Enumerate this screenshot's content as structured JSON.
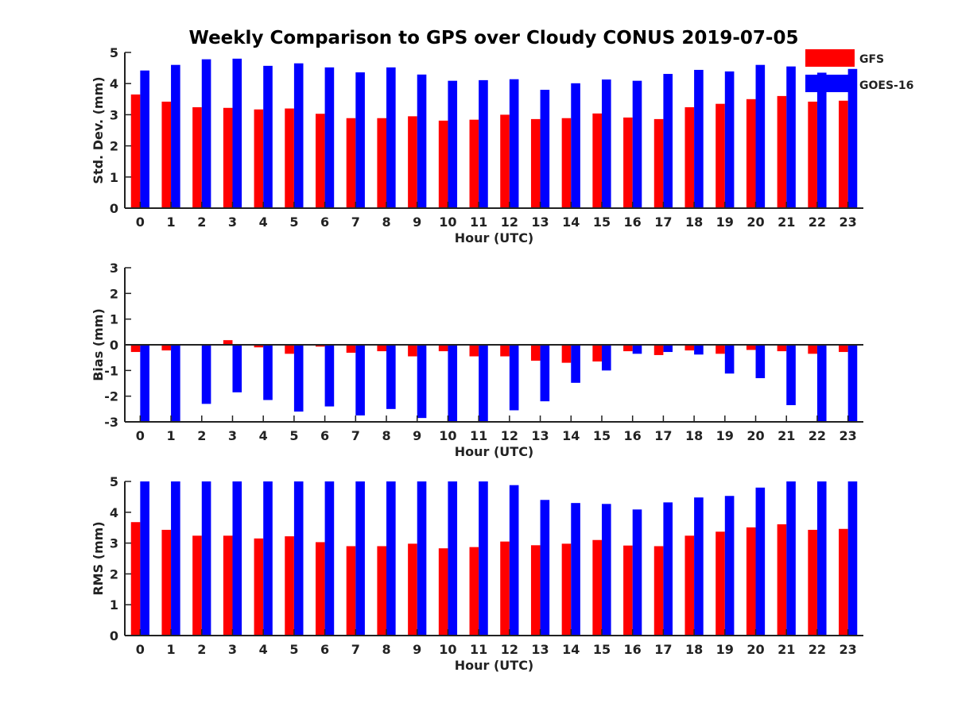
{
  "title": "Weekly Comparison to GPS over Cloudy CONUS 2019-07-05",
  "legend": [
    {
      "name": "GFS",
      "color": "#ff0000"
    },
    {
      "name": "GOES-16",
      "color": "#0000ff"
    }
  ],
  "chart_data": [
    {
      "type": "bar",
      "categories": [
        "0",
        "1",
        "2",
        "3",
        "4",
        "5",
        "6",
        "7",
        "8",
        "9",
        "10",
        "11",
        "12",
        "13",
        "14",
        "15",
        "16",
        "17",
        "18",
        "19",
        "20",
        "21",
        "22",
        "23"
      ],
      "xlabel": "Hour (UTC)",
      "ylabel": "Std. Dev. (mm)",
      "ylim": [
        0,
        5
      ],
      "yticks": [
        "0",
        "1",
        "2",
        "3",
        "4",
        "5"
      ],
      "legend_position": "top-right",
      "series": [
        {
          "name": "GFS",
          "color": "#ff0000",
          "values": [
            3.65,
            3.42,
            3.24,
            3.22,
            3.17,
            3.2,
            3.03,
            2.89,
            2.89,
            2.95,
            2.81,
            2.84,
            3.0,
            2.86,
            2.89,
            3.04,
            2.91,
            2.86,
            3.24,
            3.35,
            3.5,
            3.6,
            3.42,
            3.45
          ]
        },
        {
          "name": "GOES-16",
          "color": "#0000ff",
          "values": [
            4.42,
            4.6,
            4.78,
            4.8,
            4.57,
            4.65,
            4.52,
            4.36,
            4.52,
            4.29,
            4.09,
            4.11,
            4.14,
            3.8,
            4.01,
            4.13,
            4.09,
            4.31,
            4.44,
            4.39,
            4.6,
            4.55,
            4.35,
            4.47
          ]
        }
      ]
    },
    {
      "type": "bar",
      "categories": [
        "0",
        "1",
        "2",
        "3",
        "4",
        "5",
        "6",
        "7",
        "8",
        "9",
        "10",
        "11",
        "12",
        "13",
        "14",
        "15",
        "16",
        "17",
        "18",
        "19",
        "20",
        "21",
        "22",
        "23"
      ],
      "xlabel": "Hour (UTC)",
      "ylabel": "Bias (mm)",
      "ylim": [
        -3,
        3
      ],
      "yticks": [
        "-3",
        "-2",
        "-1",
        "0",
        "1",
        "2",
        "3"
      ],
      "series": [
        {
          "name": "GFS",
          "color": "#ff0000",
          "values": [
            -0.28,
            -0.22,
            -0.03,
            0.18,
            -0.1,
            -0.35,
            -0.07,
            -0.31,
            -0.25,
            -0.45,
            -0.25,
            -0.45,
            -0.45,
            -0.62,
            -0.7,
            -0.65,
            -0.25,
            -0.4,
            -0.22,
            -0.35,
            -0.2,
            -0.25,
            -0.35,
            -0.28
          ]
        },
        {
          "name": "GOES-16",
          "color": "#0000ff",
          "values": [
            -3.3,
            -3.3,
            -2.3,
            -1.85,
            -2.15,
            -2.6,
            -2.4,
            -2.75,
            -2.5,
            -2.85,
            -2.98,
            -3.3,
            -2.55,
            -2.2,
            -1.48,
            -1.0,
            -0.35,
            -0.28,
            -0.38,
            -1.12,
            -1.3,
            -2.35,
            -3.3,
            -3.3
          ]
        }
      ]
    },
    {
      "type": "bar",
      "categories": [
        "0",
        "1",
        "2",
        "3",
        "4",
        "5",
        "6",
        "7",
        "8",
        "9",
        "10",
        "11",
        "12",
        "13",
        "14",
        "15",
        "16",
        "17",
        "18",
        "19",
        "20",
        "21",
        "22",
        "23"
      ],
      "xlabel": "Hour (UTC)",
      "ylabel": "RMS (mm)",
      "ylim": [
        0,
        5
      ],
      "yticks": [
        "0",
        "1",
        "2",
        "3",
        "4",
        "5"
      ],
      "series": [
        {
          "name": "GFS",
          "color": "#ff0000",
          "values": [
            3.68,
            3.43,
            3.24,
            3.24,
            3.15,
            3.22,
            3.03,
            2.9,
            2.9,
            2.98,
            2.83,
            2.87,
            3.05,
            2.93,
            2.98,
            3.1,
            2.92,
            2.9,
            3.24,
            3.37,
            3.51,
            3.61,
            3.43,
            3.46
          ]
        },
        {
          "name": "GOES-16",
          "color": "#0000ff",
          "values": [
            5.3,
            5.3,
            5.3,
            5.3,
            5.3,
            5.3,
            5.3,
            5.3,
            5.3,
            5.3,
            5.3,
            5.3,
            4.88,
            4.4,
            4.3,
            4.27,
            4.09,
            4.32,
            4.48,
            4.53,
            4.8,
            5.3,
            5.3,
            5.3
          ]
        }
      ]
    }
  ]
}
